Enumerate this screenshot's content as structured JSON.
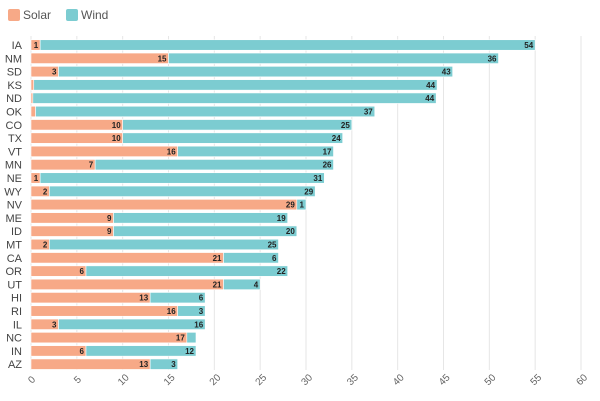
{
  "chart_data": {
    "type": "bar",
    "orientation": "horizontal",
    "stacked": true,
    "categories": [
      "IA",
      "NM",
      "SD",
      "KS",
      "ND",
      "OK",
      "CO",
      "TX",
      "VT",
      "MN",
      "NE",
      "WY",
      "NV",
      "ME",
      "ID",
      "MT",
      "CA",
      "OR",
      "UT",
      "HI",
      "RI",
      "IL",
      "NC",
      "IN",
      "AZ"
    ],
    "series": [
      {
        "name": "Solar",
        "color": "#f7a987",
        "values": [
          1,
          15,
          3,
          0.3,
          0.2,
          0.5,
          10,
          10,
          16,
          7,
          1,
          2,
          29,
          9,
          9,
          2,
          21,
          6,
          21,
          13,
          16,
          3,
          17,
          6,
          13
        ],
        "labels": [
          "1",
          "15",
          "3",
          "",
          "",
          "",
          "10",
          "10",
          "16",
          "7",
          "1",
          "2",
          "29",
          "9",
          "9",
          "2",
          "21",
          "6",
          "21",
          "13",
          "16",
          "3",
          "17",
          "6",
          "13"
        ]
      },
      {
        "name": "Wind",
        "color": "#7cccd1",
        "values": [
          54,
          36,
          43,
          44,
          44,
          37,
          25,
          24,
          17,
          26,
          31,
          29,
          1,
          19,
          20,
          25,
          6,
          22,
          4,
          6,
          3,
          16,
          1,
          12,
          3
        ],
        "labels": [
          "54",
          "36",
          "43",
          "44",
          "44",
          "37",
          "25",
          "24",
          "17",
          "26",
          "31",
          "29",
          "1",
          "19",
          "20",
          "25",
          "6",
          "22",
          "4",
          "6",
          "3",
          "16",
          "",
          "12",
          "3"
        ]
      }
    ],
    "xlim": [
      0,
      60
    ],
    "xticks": [
      "0",
      "5",
      "10",
      "15",
      "20",
      "25",
      "30",
      "35",
      "40",
      "45",
      "50",
      "55",
      "60"
    ],
    "title": "",
    "xlabel": "",
    "ylabel": "",
    "grid": true,
    "legend": "top-left"
  }
}
